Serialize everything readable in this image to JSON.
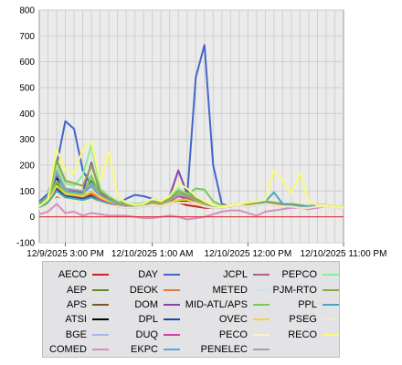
{
  "chart_data": {
    "type": "line",
    "title": "",
    "xlabel": "",
    "ylabel": "",
    "ylim": [
      -100,
      800
    ],
    "yticks": [
      -100,
      0,
      100,
      200,
      300,
      400,
      500,
      600,
      700,
      800
    ],
    "x_tick_labels": [
      "12/9/2025 3:00 PM",
      "12/10/2025 1:00 AM",
      "12/10/2025 12:00 PM",
      "12/10/2025 11:00 PM"
    ],
    "x_tick_hours": [
      0,
      10,
      21,
      32
    ],
    "grid": true,
    "legend_position": "bottom",
    "x_hours": [
      -3,
      -2,
      -1,
      0,
      1,
      2,
      3,
      4,
      5,
      6,
      7,
      8,
      9,
      10,
      11,
      12,
      13,
      14,
      15,
      16,
      17,
      18,
      19,
      20,
      21,
      22,
      23,
      24,
      25,
      26,
      27,
      28,
      29,
      30,
      31,
      32
    ],
    "series": [
      {
        "name": "AECO",
        "color": "#cc2222",
        "values": [
          30,
          55,
          80,
          70,
          65,
          60,
          70,
          55,
          45,
          40,
          35,
          35,
          40,
          45,
          40,
          50,
          55,
          45,
          40,
          35,
          35,
          35,
          40,
          45,
          40,
          45,
          50,
          45,
          40,
          40,
          35,
          35,
          40,
          40,
          35,
          35
        ]
      },
      {
        "name": "AEP",
        "color": "#5b8f2e",
        "values": [
          55,
          75,
          130,
          90,
          85,
          85,
          140,
          75,
          60,
          45,
          40,
          40,
          45,
          50,
          45,
          60,
          80,
          100,
          70,
          50,
          40,
          35,
          40,
          45,
          45,
          50,
          55,
          55,
          50,
          50,
          45,
          40,
          45,
          45,
          40,
          40
        ]
      },
      {
        "name": "APS",
        "color": "#7a5a2a",
        "values": [
          40,
          60,
          100,
          80,
          75,
          70,
          80,
          60,
          50,
          40,
          35,
          35,
          40,
          45,
          40,
          55,
          60,
          60,
          50,
          45,
          40,
          40,
          40,
          45,
          45,
          50,
          55,
          50,
          45,
          45,
          40,
          40,
          45,
          45,
          40,
          40
        ]
      },
      {
        "name": "ATSI",
        "color": "#000000",
        "values": [
          55,
          80,
          150,
          80,
          85,
          70,
          85,
          65,
          55,
          45,
          40,
          40,
          45,
          50,
          45,
          55,
          65,
          60,
          50,
          45,
          40,
          35,
          40,
          45,
          45,
          50,
          55,
          55,
          50,
          50,
          45,
          40,
          45,
          45,
          40,
          40
        ]
      },
      {
        "name": "BGE",
        "color": "#9ebcf2",
        "values": [
          30,
          45,
          90,
          70,
          65,
          60,
          70,
          55,
          45,
          40,
          35,
          35,
          40,
          45,
          40,
          50,
          55,
          55,
          50,
          40,
          35,
          35,
          40,
          45,
          40,
          45,
          50,
          45,
          40,
          40,
          35,
          35,
          40,
          40,
          35,
          35
        ]
      },
      {
        "name": "COMED",
        "color": "#d48fc0",
        "values": [
          10,
          20,
          50,
          15,
          20,
          5,
          15,
          10,
          5,
          5,
          5,
          0,
          -5,
          -5,
          0,
          5,
          0,
          -10,
          -5,
          0,
          10,
          20,
          25,
          25,
          15,
          5,
          20,
          25,
          30,
          35,
          35,
          30,
          35,
          40,
          35,
          35
        ]
      },
      {
        "name": "DAY",
        "color": "#4466cc",
        "values": [
          60,
          90,
          200,
          370,
          340,
          180,
          120,
          80,
          60,
          50,
          70,
          85,
          80,
          70,
          60,
          70,
          80,
          70,
          540,
          665,
          200,
          50,
          40,
          45,
          45,
          50,
          55,
          55,
          50,
          50,
          45,
          40,
          45,
          45,
          40,
          40
        ]
      },
      {
        "name": "DEOK",
        "color": "#e8773a",
        "values": [
          45,
          70,
          120,
          85,
          80,
          75,
          90,
          65,
          55,
          45,
          40,
          40,
          45,
          50,
          45,
          55,
          65,
          70,
          55,
          45,
          40,
          40,
          40,
          45,
          45,
          50,
          55,
          50,
          45,
          45,
          40,
          40,
          45,
          45,
          40,
          40
        ]
      },
      {
        "name": "DOM",
        "color": "#8844aa",
        "values": [
          50,
          75,
          160,
          110,
          100,
          95,
          210,
          90,
          70,
          55,
          50,
          45,
          50,
          60,
          55,
          80,
          180,
          90,
          70,
          55,
          45,
          40,
          45,
          50,
          50,
          55,
          60,
          55,
          50,
          50,
          45,
          40,
          45,
          45,
          40,
          40
        ]
      },
      {
        "name": "DPL",
        "color": "#2244aa",
        "values": [
          40,
          60,
          110,
          80,
          75,
          70,
          80,
          60,
          50,
          40,
          35,
          35,
          40,
          45,
          40,
          50,
          55,
          55,
          50,
          40,
          35,
          35,
          40,
          45,
          40,
          45,
          50,
          45,
          40,
          40,
          35,
          35,
          40,
          40,
          35,
          35
        ]
      },
      {
        "name": "DUQ",
        "color": "#cc44aa",
        "values": [
          50,
          70,
          140,
          90,
          85,
          80,
          100,
          70,
          55,
          45,
          40,
          40,
          45,
          55,
          50,
          60,
          80,
          75,
          60,
          50,
          40,
          35,
          40,
          45,
          45,
          50,
          55,
          55,
          50,
          50,
          45,
          40,
          45,
          45,
          40,
          40
        ]
      },
      {
        "name": "EKPC",
        "color": "#55aadd",
        "values": [
          55,
          80,
          170,
          100,
          95,
          90,
          120,
          80,
          65,
          50,
          45,
          40,
          45,
          55,
          50,
          65,
          85,
          80,
          65,
          50,
          40,
          35,
          40,
          45,
          45,
          50,
          55,
          55,
          50,
          50,
          45,
          40,
          45,
          45,
          40,
          40
        ]
      },
      {
        "name": "JCPL",
        "color": "#b06080",
        "values": [
          35,
          55,
          100,
          75,
          70,
          65,
          75,
          60,
          50,
          40,
          35,
          35,
          40,
          45,
          40,
          50,
          55,
          55,
          50,
          40,
          35,
          35,
          40,
          45,
          40,
          45,
          50,
          45,
          40,
          40,
          35,
          35,
          40,
          40,
          35,
          35
        ]
      },
      {
        "name": "METED",
        "color": "#c8e4f8",
        "values": [
          30,
          50,
          95,
          70,
          65,
          60,
          70,
          55,
          45,
          40,
          35,
          35,
          40,
          45,
          40,
          50,
          55,
          55,
          50,
          40,
          35,
          35,
          40,
          45,
          40,
          45,
          50,
          45,
          40,
          40,
          35,
          35,
          40,
          40,
          35,
          35
        ]
      },
      {
        "name": "MID-ATL/APS",
        "color": "#77cc55",
        "values": [
          45,
          70,
          140,
          95,
          90,
          85,
          160,
          80,
          65,
          50,
          45,
          40,
          45,
          55,
          50,
          65,
          90,
          85,
          110,
          105,
          60,
          45,
          40,
          45,
          45,
          50,
          55,
          55,
          50,
          50,
          45,
          40,
          45,
          45,
          40,
          40
        ]
      },
      {
        "name": "OVEC",
        "color": "#f0d838",
        "values": [
          35,
          60,
          120,
          90,
          85,
          80,
          100,
          75,
          60,
          50,
          45,
          40,
          45,
          50,
          45,
          55,
          65,
          65,
          55,
          45,
          40,
          40,
          45,
          50,
          50,
          55,
          60,
          55,
          50,
          50,
          45,
          40,
          45,
          45,
          40,
          40
        ]
      },
      {
        "name": "PECO",
        "color": "#f6f6c8",
        "values": [
          30,
          45,
          90,
          70,
          65,
          60,
          70,
          55,
          45,
          40,
          35,
          35,
          40,
          45,
          40,
          50,
          55,
          55,
          50,
          40,
          35,
          35,
          40,
          45,
          40,
          45,
          50,
          45,
          40,
          40,
          35,
          35,
          40,
          40,
          35,
          35
        ]
      },
      {
        "name": "PENELEC",
        "color": "#98a8a0",
        "values": [
          50,
          75,
          180,
          110,
          105,
          100,
          130,
          85,
          65,
          50,
          45,
          40,
          45,
          55,
          50,
          65,
          85,
          80,
          65,
          50,
          40,
          35,
          40,
          45,
          45,
          50,
          55,
          55,
          50,
          50,
          45,
          40,
          45,
          45,
          40,
          40
        ]
      },
      {
        "name": "PEPCO",
        "color": "#88ee99",
        "values": [
          45,
          70,
          200,
          130,
          120,
          160,
          280,
          110,
          80,
          60,
          55,
          50,
          55,
          60,
          55,
          75,
          110,
          90,
          70,
          55,
          45,
          40,
          45,
          50,
          50,
          55,
          60,
          55,
          50,
          50,
          45,
          40,
          45,
          45,
          40,
          40
        ]
      },
      {
        "name": "PJM-RTO",
        "color": "#8aaa44",
        "values": [
          50,
          75,
          220,
          140,
          130,
          120,
          200,
          100,
          75,
          55,
          50,
          45,
          50,
          60,
          55,
          70,
          100,
          85,
          70,
          55,
          45,
          40,
          45,
          50,
          50,
          55,
          60,
          55,
          50,
          50,
          45,
          40,
          45,
          45,
          40,
          40
        ]
      },
      {
        "name": "PPL",
        "color": "#44aabb",
        "values": [
          35,
          55,
          100,
          75,
          70,
          65,
          75,
          60,
          50,
          40,
          35,
          35,
          40,
          45,
          40,
          50,
          55,
          55,
          50,
          40,
          35,
          35,
          40,
          45,
          40,
          45,
          60,
          95,
          50,
          45,
          40,
          40,
          45,
          45,
          40,
          40
        ]
      },
      {
        "name": "PSEG",
        "color": "#f6e6cc",
        "values": [
          30,
          45,
          85,
          65,
          60,
          55,
          65,
          55,
          45,
          40,
          35,
          35,
          40,
          45,
          40,
          50,
          55,
          55,
          50,
          40,
          35,
          35,
          40,
          45,
          40,
          45,
          50,
          45,
          40,
          40,
          35,
          35,
          40,
          40,
          35,
          35
        ]
      },
      {
        "name": "RECO",
        "color": "#fafa78",
        "values": [
          40,
          70,
          260,
          180,
          170,
          260,
          290,
          140,
          250,
          80,
          55,
          45,
          50,
          70,
          60,
          80,
          130,
          110,
          80,
          60,
          45,
          40,
          45,
          50,
          55,
          60,
          65,
          180,
          140,
          90,
          170,
          60,
          45,
          45,
          40,
          40
        ]
      }
    ]
  }
}
